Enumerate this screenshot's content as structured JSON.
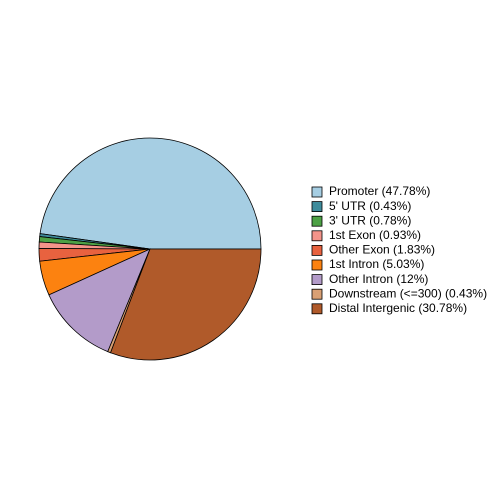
{
  "chart_data": {
    "type": "pie",
    "categories": [
      "Promoter (47.78%)",
      "5' UTR (0.43%)",
      "3' UTR (0.78%)",
      "1st Exon (0.93%)",
      "Other Exon (1.83%)",
      "1st Intron (5.03%)",
      "Other Intron (12%)",
      "Downstream (<=300) (0.43%)",
      "Distal Intergenic (30.78%)"
    ],
    "values": [
      47.78,
      0.43,
      0.78,
      0.93,
      1.83,
      5.03,
      12,
      0.43,
      30.78
    ],
    "colors": [
      "#a6cee3",
      "#3f8c9c",
      "#4da145",
      "#f4948a",
      "#e8623f",
      "#fc8210",
      "#b39bc9",
      "#d9a074",
      "#b05a2a"
    ]
  }
}
